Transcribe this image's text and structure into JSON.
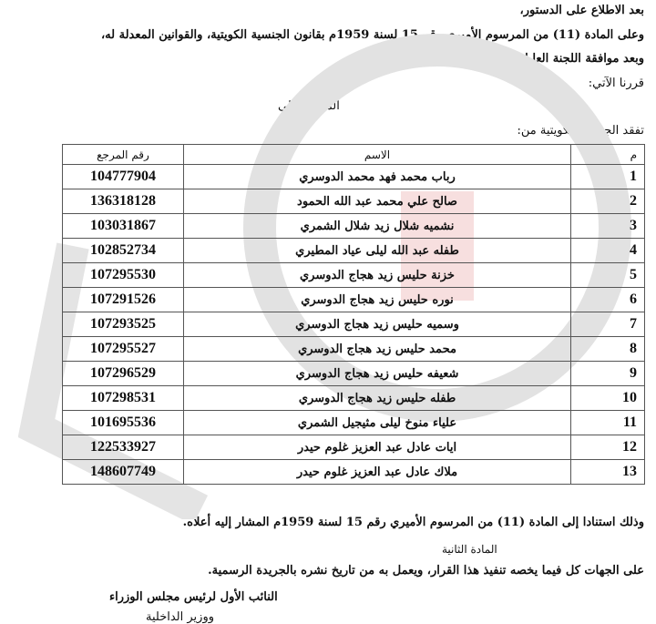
{
  "preamble": [
    "بعد الاطلاع على الدستور،",
    "وعلى المادة (11) من المرسوم الأميري رقم 15 لسنة 1959م بقانون الجنسية الكويتية، والقوانين المعدلة له،",
    "وبعد موافقة اللجنة العليا لتحقيق الجنسية الكويتية،",
    "قررنا الآتي:"
  ],
  "article1_title": "المادة الأولى",
  "article1_intro": "تفقد الجنسية الكويتية من:",
  "table": {
    "headers": {
      "index": "م",
      "name": "الاسم",
      "ref": "رقم المرجع"
    },
    "rows": [
      {
        "index": "1",
        "name": "رباب محمد فهد محمد الدوسري",
        "ref": "104777904"
      },
      {
        "index": "2",
        "name": "صالح علي محمد عبد الله الحمود",
        "ref": "136318128"
      },
      {
        "index": "3",
        "name": "نشميه شلال زيد شلال الشمري",
        "ref": "103031867"
      },
      {
        "index": "4",
        "name": "طفله عبد الله ليلى عياد المطيري",
        "ref": "102852734"
      },
      {
        "index": "5",
        "name": "خزنة حليس زيد هجاج الدوسري",
        "ref": "107295530"
      },
      {
        "index": "6",
        "name": "نوره حليس زيد هجاج الدوسري",
        "ref": "107291526"
      },
      {
        "index": "7",
        "name": "وسميه حليس زيد هجاج الدوسري",
        "ref": "107293525"
      },
      {
        "index": "8",
        "name": "محمد حليس زيد هجاج الدوسري",
        "ref": "107295527"
      },
      {
        "index": "9",
        "name": "شعيفه حليس زيد هجاج الدوسري",
        "ref": "107296529"
      },
      {
        "index": "10",
        "name": "طفله حليس زيد هجاج الدوسري",
        "ref": "107298531"
      },
      {
        "index": "11",
        "name": "علياء منوخ ليلى مثيجيل الشمري",
        "ref": "101695536"
      },
      {
        "index": "12",
        "name": "ايات عادل عبد العزيز غلوم حيدر",
        "ref": "122533927"
      },
      {
        "index": "13",
        "name": "ملاك عادل عبد العزيز غلوم حيدر",
        "ref": "148607749"
      }
    ]
  },
  "article1_basis": "وذلك استنادا إلى المادة (11) من المرسوم الأميري رقم 15 لسنة 1959م المشار إليه أعلاه.",
  "article2_title": "المادة الثانية",
  "article2_text": "على الجهات كل فيما يخصه تنفيذ هذا القرار، ويعمل به من تاريخ نشره بالجريدة الرسمية.",
  "signature": {
    "title": "النائب الأول لرئيس مجلس الوزراء",
    "subtitle": "ووزير الداخلية"
  },
  "watermark": {
    "text": "SARMADY",
    "colors": {
      "gray": "#d9d9d9",
      "red": "#e8a5a5"
    }
  }
}
